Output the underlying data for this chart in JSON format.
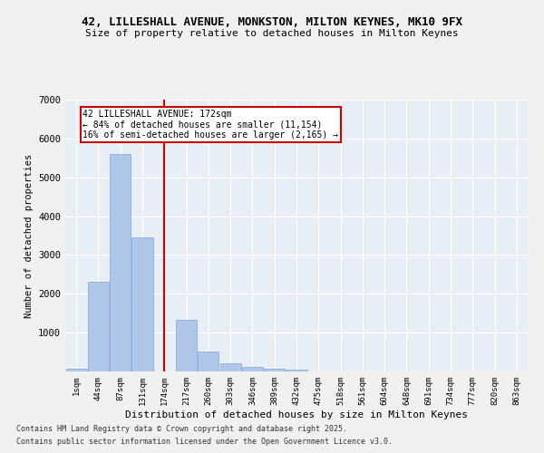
{
  "title": "42, LILLESHALL AVENUE, MONKSTON, MILTON KEYNES, MK10 9FX",
  "subtitle": "Size of property relative to detached houses in Milton Keynes",
  "xlabel": "Distribution of detached houses by size in Milton Keynes",
  "ylabel": "Number of detached properties",
  "categories": [
    "1sqm",
    "44sqm",
    "87sqm",
    "131sqm",
    "174sqm",
    "217sqm",
    "260sqm",
    "303sqm",
    "346sqm",
    "389sqm",
    "432sqm",
    "475sqm",
    "518sqm",
    "561sqm",
    "604sqm",
    "648sqm",
    "691sqm",
    "734sqm",
    "777sqm",
    "820sqm",
    "863sqm"
  ],
  "values": [
    80,
    2300,
    5600,
    3450,
    0,
    1320,
    520,
    200,
    120,
    80,
    50,
    0,
    0,
    0,
    0,
    0,
    0,
    0,
    0,
    0,
    0
  ],
  "bar_color": "#aec6e8",
  "bar_edge_color": "#7fa8d0",
  "vline_x": 4,
  "vline_color": "#cc0000",
  "annotation_text": "42 LILLESHALL AVENUE: 172sqm\n← 84% of detached houses are smaller (11,154)\n16% of semi-detached houses are larger (2,165) →",
  "annotation_box_color": "#cc0000",
  "annotation_text_color": "#000000",
  "ylim": [
    0,
    7000
  ],
  "yticks": [
    0,
    1000,
    2000,
    3000,
    4000,
    5000,
    6000,
    7000
  ],
  "bg_color": "#e8eef5",
  "grid_color": "#ffffff",
  "footer1": "Contains HM Land Registry data © Crown copyright and database right 2025.",
  "footer2": "Contains public sector information licensed under the Open Government Licence v3.0."
}
